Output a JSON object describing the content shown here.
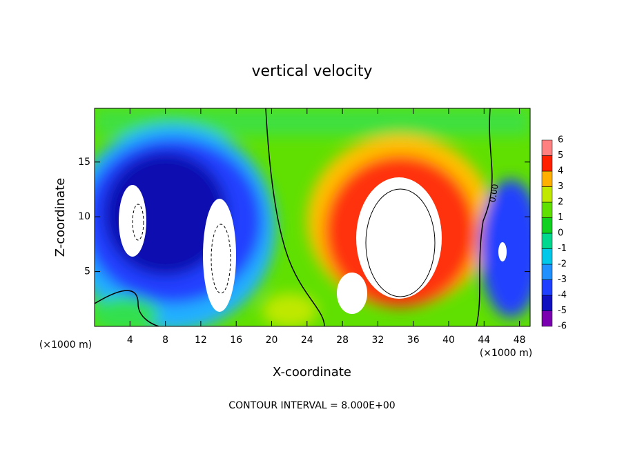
{
  "chart_data": {
    "type": "contour",
    "title": "vertical velocity",
    "x_label": "X-coordinate",
    "y_label": "Z-coordinate",
    "x_unit": "(×1000 m)",
    "footer": "CONTOUR INTERVAL = 8.000E+00",
    "contour_label": "0.00",
    "xlim": [
      0,
      49.2
    ],
    "ylim": [
      0,
      19.9
    ],
    "xticks": [
      4,
      8,
      12,
      16,
      20,
      24,
      28,
      32,
      36,
      40,
      44,
      48
    ],
    "yticks": [
      5,
      10,
      15
    ],
    "colorbar": {
      "levels": [
        -6,
        -5,
        -4,
        -3,
        -2,
        -1,
        0,
        1,
        2,
        3,
        4,
        5,
        6
      ],
      "colors": [
        "#7a00b0",
        "#1010c0",
        "#2040ff",
        "#2090ff",
        "#00c8e8",
        "#00d890",
        "#10d020",
        "#60e000",
        "#c0e800",
        "#ffb000",
        "#ff2000",
        "#ff8080"
      ]
    }
  }
}
